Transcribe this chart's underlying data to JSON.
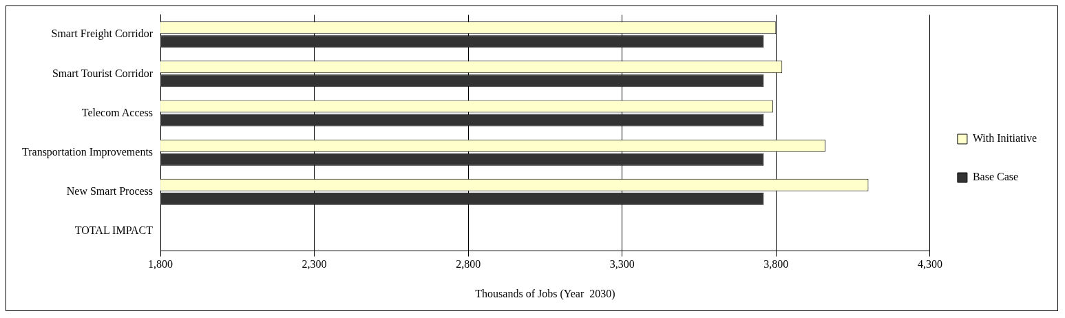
{
  "chart_data": {
    "type": "bar",
    "orientation": "horizontal",
    "xlabel": "Thousands of Jobs (Year  2030)",
    "categories": [
      "Smart Freight Corridor",
      "Smart Tourist Corridor",
      "Telecom Access",
      "Transportation Improvements",
      "New Smart Process",
      "TOTAL IMPACT"
    ],
    "series": [
      {
        "name": "With Initiative",
        "color": "#ffffcc",
        "values": [
          3800,
          3820,
          3790,
          3960,
          4100,
          null
        ]
      },
      {
        "name": "Base Case",
        "color": "#333333",
        "values": [
          3760,
          3760,
          3760,
          3760,
          3760,
          null
        ]
      }
    ],
    "xlim": [
      1800,
      4300
    ],
    "xticks": [
      {
        "value": 1800,
        "label": "1,800"
      },
      {
        "value": 2300,
        "label": "2,300"
      },
      {
        "value": 2800,
        "label": "2,800"
      },
      {
        "value": 3300,
        "label": "3,300"
      },
      {
        "value": 3800,
        "label": "3,800"
      },
      {
        "value": 4300,
        "label": "4,300"
      }
    ],
    "grid": "x",
    "legend": "right"
  }
}
